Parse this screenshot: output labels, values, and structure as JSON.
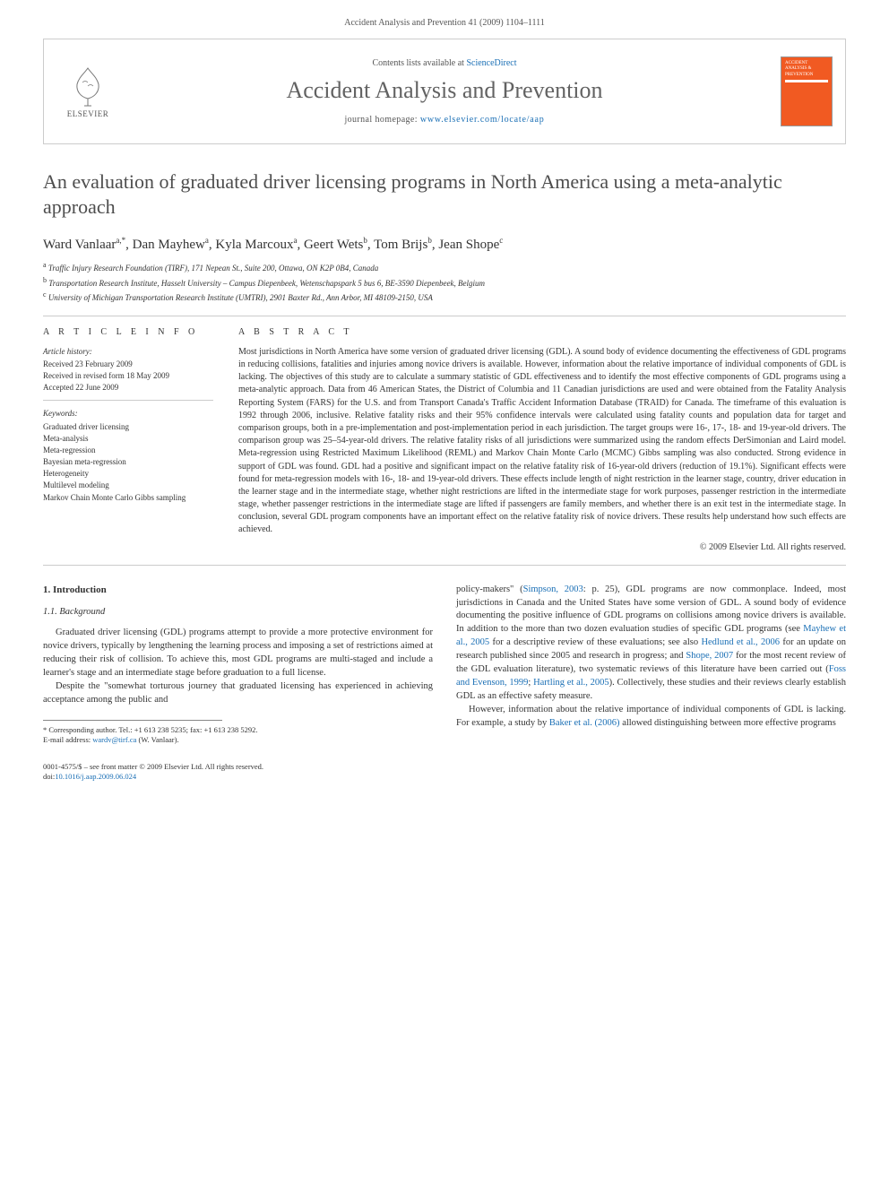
{
  "page_header": "Accident Analysis and Prevention 41 (2009) 1104–1111",
  "journal_box": {
    "contents_pre": "Contents lists available at ",
    "contents_link": "ScienceDirect",
    "journal_name": "Accident Analysis and Prevention",
    "homepage_pre": "journal homepage: ",
    "homepage_link": "www.elsevier.com/locate/aap",
    "publisher_label": "ELSEVIER",
    "cover_text": "ACCIDENT ANALYSIS & PREVENTION"
  },
  "title": "An evaluation of graduated driver licensing programs in North America using a meta-analytic approach",
  "authors_html_parts": [
    {
      "name": "Ward Vanlaar",
      "sup": "a,*"
    },
    {
      "name": "Dan Mayhew",
      "sup": "a"
    },
    {
      "name": "Kyla Marcoux",
      "sup": "a"
    },
    {
      "name": "Geert Wets",
      "sup": "b"
    },
    {
      "name": "Tom Brijs",
      "sup": "b"
    },
    {
      "name": "Jean Shope",
      "sup": "c"
    }
  ],
  "affiliations": [
    {
      "key": "a",
      "text": "Traffic Injury Research Foundation (TIRF), 171 Nepean St., Suite 200, Ottawa, ON K2P 0B4, Canada"
    },
    {
      "key": "b",
      "text": "Transportation Research Institute, Hasselt University – Campus Diepenbeek, Wetenschapspark 5 bus 6, BE-3590 Diepenbeek, Belgium"
    },
    {
      "key": "c",
      "text": "University of Michigan Transportation Research Institute (UMTRI), 2901 Baxter Rd., Ann Arbor, MI 48109-2150, USA"
    }
  ],
  "article_info": {
    "heading": "A R T I C L E   I N F O",
    "history_label": "Article history:",
    "history": [
      "Received 23 February 2009",
      "Received in revised form 18 May 2009",
      "Accepted 22 June 2009"
    ],
    "keywords_label": "Keywords:",
    "keywords": [
      "Graduated driver licensing",
      "Meta-analysis",
      "Meta-regression",
      "Bayesian meta-regression",
      "Heterogeneity",
      "Multilevel modeling",
      "Markov Chain Monte Carlo Gibbs sampling"
    ]
  },
  "abstract": {
    "heading": "A B S T R A C T",
    "text": "Most jurisdictions in North America have some version of graduated driver licensing (GDL). A sound body of evidence documenting the effectiveness of GDL programs in reducing collisions, fatalities and injuries among novice drivers is available. However, information about the relative importance of individual components of GDL is lacking. The objectives of this study are to calculate a summary statistic of GDL effectiveness and to identify the most effective components of GDL programs using a meta-analytic approach. Data from 46 American States, the District of Columbia and 11 Canadian jurisdictions are used and were obtained from the Fatality Analysis Reporting System (FARS) for the U.S. and from Transport Canada's Traffic Accident Information Database (TRAID) for Canada. The timeframe of this evaluation is 1992 through 2006, inclusive. Relative fatality risks and their 95% confidence intervals were calculated using fatality counts and population data for target and comparison groups, both in a pre-implementation and post-implementation period in each jurisdiction. The target groups were 16-, 17-, 18- and 19-year-old drivers. The comparison group was 25–54-year-old drivers. The relative fatality risks of all jurisdictions were summarized using the random effects DerSimonian and Laird model. Meta-regression using Restricted Maximum Likelihood (REML) and Markov Chain Monte Carlo (MCMC) Gibbs sampling was also conducted. Strong evidence in support of GDL was found. GDL had a positive and significant impact on the relative fatality risk of 16-year-old drivers (reduction of 19.1%). Significant effects were found for meta-regression models with 16-, 18- and 19-year-old drivers. These effects include length of night restriction in the learner stage, country, driver education in the learner stage and in the intermediate stage, whether night restrictions are lifted in the intermediate stage for work purposes, passenger restriction in the intermediate stage, whether passenger restrictions in the intermediate stage are lifted if passengers are family members, and whether there is an exit test in the intermediate stage. In conclusion, several GDL program components have an important effect on the relative fatality risk of novice drivers. These results help understand how such effects are achieved.",
    "copyright": "© 2009 Elsevier Ltd. All rights reserved."
  },
  "body": {
    "section1": "1.  Introduction",
    "section11": "1.1.  Background",
    "p1": "Graduated driver licensing (GDL) programs attempt to provide a more protective environment for novice drivers, typically by lengthening the learning process and imposing a set of restrictions aimed at reducing their risk of collision. To achieve this, most GDL programs are multi-staged and include a learner's stage and an intermediate stage before graduation to a full license.",
    "p2": "Despite the \"somewhat torturous journey that graduated licensing has experienced in achieving acceptance among the public and",
    "p3a": "policy-makers\" (",
    "p3_ref1": "Simpson, 2003",
    "p3b": ": p. 25), GDL programs are now commonplace. Indeed, most jurisdictions in Canada and the United States have some version of GDL. A sound body of evidence documenting the positive influence of GDL programs on collisions among novice drivers is available. In addition to the more than two dozen evaluation studies of specific GDL programs (see ",
    "p3_ref2": "Mayhew et al., 2005",
    "p3c": " for a descriptive review of these evaluations; see also ",
    "p3_ref3": "Hedlund et al., 2006",
    "p3d": " for an update on research published since 2005 and research in progress; and ",
    "p3_ref4": "Shope, 2007",
    "p3e": " for the most recent review of the GDL evaluation literature), two systematic reviews of this literature have been carried out (",
    "p3_ref5": "Foss and Evenson, 1999",
    "p3f": "; ",
    "p3_ref6": "Hartling et al., 2005",
    "p3g": "). Collectively, these studies and their reviews clearly establish GDL as an effective safety measure.",
    "p4a": "However, information about the relative importance of individual components of GDL is lacking. For example, a study by ",
    "p4_ref1": "Baker et al. (2006)",
    "p4b": " allowed distinguishing between more effective programs"
  },
  "footnote": {
    "corr_label": "* Corresponding author. Tel.: +1 613 238 5235; fax: +1 613 238 5292.",
    "email_label": "E-mail address: ",
    "email": "wardv@tirf.ca",
    "email_suffix": " (W. Vanlaar)."
  },
  "footer": {
    "line1": "0001-4575/$ – see front matter © 2009 Elsevier Ltd. All rights reserved.",
    "doi_label": "doi:",
    "doi": "10.1016/j.aap.2009.06.024"
  },
  "colors": {
    "accent": "#1a6fb5",
    "cover_bg": "#f15a22",
    "rule": "#cccccc",
    "text": "#333333"
  }
}
